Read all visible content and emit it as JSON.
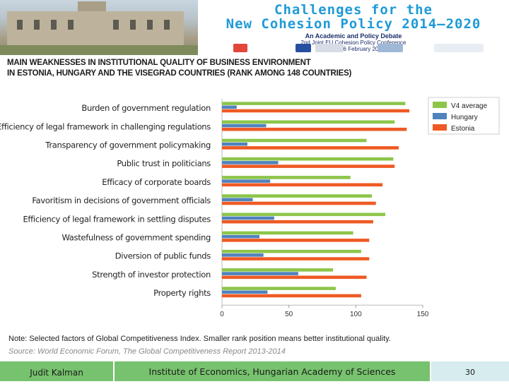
{
  "header": {
    "conference_title_line1": "Challenges for the",
    "conference_title_line2": "New Cohesion Policy 2014–2020",
    "conference_subtitle": "An Academic and Policy Debate",
    "conference_event": "2nd Joint EU Cohesion Policy Conference",
    "conference_place": "Riga, 4–6 February 2015"
  },
  "slide": {
    "title_line1": "MAIN WEAKNESSES IN INSTITUTIONAL QUALITY OF BUSINESS ENVIRONMENT",
    "title_line2": "IN ESTONIA, HUNGARY AND THE VISEGRAD COUNTRIES (RANK AMONG 148 COUNTRIES)",
    "note": "Note: Selected factors of Global Competitiveness Index. Smaller rank position means better institutional quality.",
    "source": "Source: World Economic Forum, The Global Competitiveness Report 2013-2014"
  },
  "footer": {
    "author": "Judit Kalman",
    "institution": "Institute of Economics, Hungarian Academy of Sciences",
    "page": "30"
  },
  "colors": {
    "v4": "#8dc54a",
    "hungary": "#4f82bd",
    "estonia": "#ee5a24",
    "footer_green": "#77c26e"
  },
  "chart_data": {
    "type": "bar",
    "orientation": "horizontal",
    "title": "",
    "xlabel": "",
    "ylabel": "",
    "xlim": [
      0,
      150
    ],
    "xticks": [
      0,
      50,
      100,
      150
    ],
    "categories": [
      "Burden of government regulation",
      "Efficiency of legal framework in challenging regulations",
      "Transparency of government policymaking",
      "Public trust in politicians",
      "Efficacy of corporate boards",
      "Favoritism in decisions of government officials",
      "Efficiency of legal framework in settling disputes",
      "Wastefulness of government spending",
      "Diversion of public funds",
      "Strength of investor protection",
      "Property rights"
    ],
    "series": [
      {
        "name": "V4 average",
        "values": [
          137,
          129,
          108,
          128,
          96,
          112,
          122,
          98,
          104,
          83,
          85
        ]
      },
      {
        "name": "Hungary",
        "values": [
          11,
          33,
          19,
          42,
          36,
          23,
          39,
          28,
          31,
          57,
          34
        ]
      },
      {
        "name": "Estonia",
        "values": [
          140,
          138,
          132,
          129,
          120,
          115,
          113,
          110,
          110,
          108,
          104
        ]
      }
    ],
    "legend": [
      "V4 average",
      "Hungary",
      "Estonia"
    ],
    "legend_position": "top-right"
  }
}
